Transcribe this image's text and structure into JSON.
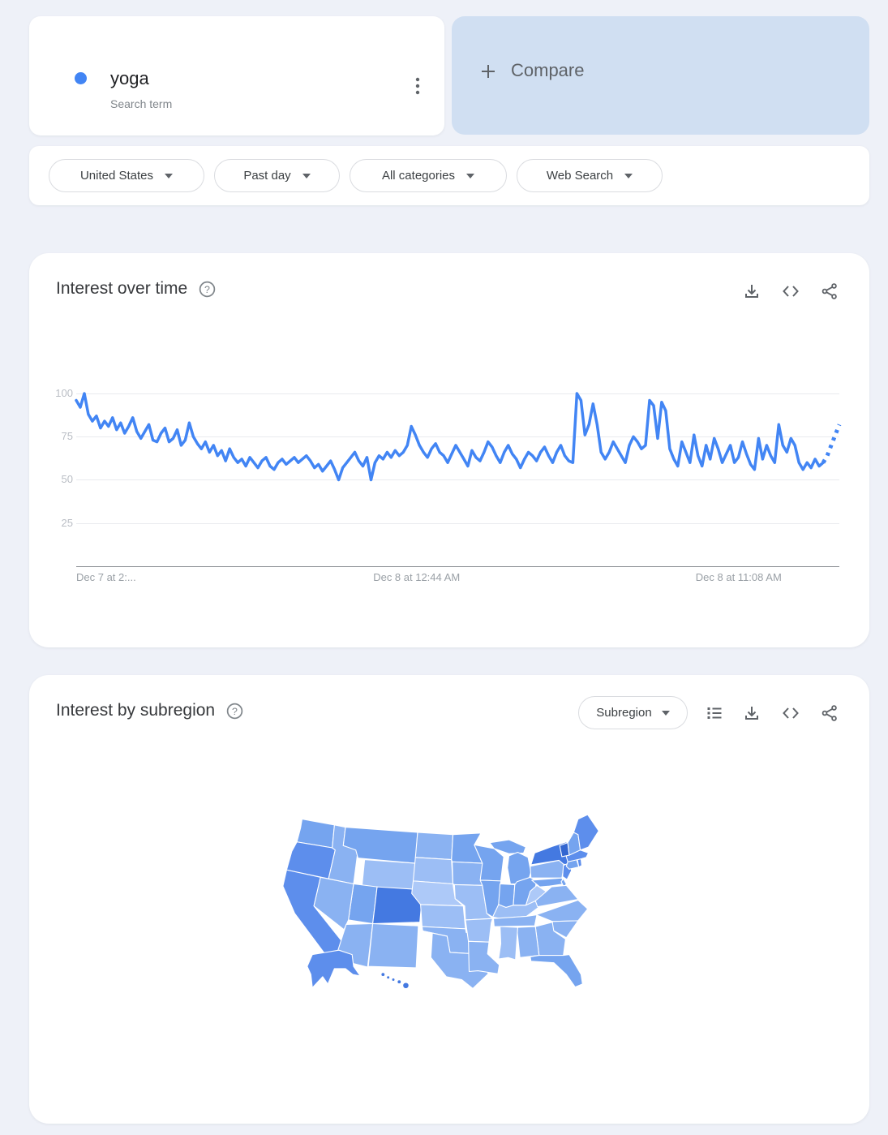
{
  "term_card": {
    "term": "yoga",
    "type_label": "Search term",
    "dot_color": "#4285f4"
  },
  "compare_card": {
    "label": "Compare"
  },
  "filters": [
    {
      "label": "United States"
    },
    {
      "label": "Past day"
    },
    {
      "label": "All categories"
    },
    {
      "label": "Web Search"
    }
  ],
  "interest_over_time": {
    "title": "Interest over time",
    "toolbar_icons": [
      "download",
      "embed",
      "share"
    ]
  },
  "interest_by_subregion": {
    "title": "Interest by subregion",
    "dropdown_label": "Subregion",
    "toolbar_icons": [
      "list-view",
      "download",
      "embed",
      "share"
    ]
  },
  "chart_data": {
    "type": "line",
    "series_name": "yoga",
    "line_color": "#4285f4",
    "grid": true,
    "ylim": [
      0,
      100
    ],
    "y_ticks": [
      25,
      50,
      75,
      100
    ],
    "x_axis_labels": [
      {
        "text": "Dec 7 at 2:...",
        "position": 0.0,
        "align": "left"
      },
      {
        "text": "Dec 8 at 12:44 AM",
        "position": 0.446,
        "align": "center"
      },
      {
        "text": "Dec 8 at 11:08 AM",
        "position": 0.868,
        "align": "center"
      }
    ],
    "values": [
      96,
      92,
      100,
      88,
      84,
      87,
      80,
      84,
      81,
      86,
      79,
      83,
      77,
      81,
      86,
      78,
      74,
      78,
      82,
      73,
      72,
      77,
      80,
      72,
      74,
      79,
      70,
      73,
      83,
      75,
      71,
      68,
      72,
      66,
      70,
      64,
      67,
      61,
      68,
      63,
      60,
      62,
      58,
      63,
      60,
      57,
      61,
      63,
      58,
      56,
      60,
      62,
      59,
      61,
      63,
      60,
      62,
      64,
      61,
      57,
      59,
      55,
      58,
      61,
      56,
      50,
      57,
      60,
      63,
      66,
      61,
      58,
      63,
      50,
      60,
      64,
      62,
      66,
      63,
      67,
      64,
      66,
      70,
      81,
      76,
      70,
      66,
      63,
      68,
      71,
      66,
      64,
      60,
      65,
      70,
      66,
      62,
      58,
      67,
      63,
      61,
      66,
      72,
      69,
      64,
      60,
      66,
      70,
      65,
      62,
      57,
      62,
      66,
      64,
      61,
      66,
      69,
      64,
      60,
      66,
      70,
      64,
      61,
      60,
      100,
      96,
      76,
      82,
      94,
      82,
      66,
      62,
      66,
      72,
      68,
      64,
      60,
      70,
      75,
      72,
      68,
      70,
      96,
      93,
      74,
      95,
      90,
      68,
      62,
      58,
      72,
      66,
      60,
      76,
      64,
      58,
      70,
      62,
      74,
      68,
      60,
      65,
      70,
      60,
      63,
      72,
      65,
      59,
      56,
      74,
      62,
      70,
      64,
      60,
      82,
      70,
      66,
      74,
      70,
      60,
      56,
      60,
      57,
      62,
      58,
      60
    ],
    "dashed_tail_values": [
      64,
      70,
      76,
      82
    ]
  },
  "map": {
    "type": "choropleth",
    "palette": {
      "1": "#adc9f8",
      "2": "#9cbef5",
      "3": "#8ab2f2",
      "4": "#75a4ef",
      "5": "#5d8eec",
      "6": "#4479e1",
      "7": "#3366d0"
    },
    "state_levels": {
      "WA": 4,
      "OR": 5,
      "CA": 5,
      "NV": 3,
      "ID": 3,
      "MT": 4,
      "WY": 2,
      "UT": 4,
      "CO": 6,
      "AZ": 3,
      "NM": 3,
      "ND": 3,
      "SD": 2,
      "NE": 1,
      "KS": 2,
      "OK": 3,
      "TX": 3,
      "MN": 4,
      "IA": 3,
      "MO": 2,
      "AR": 2,
      "LA": 3,
      "WI": 4,
      "IL": 4,
      "MI": 4,
      "IN": 4,
      "OH": 4,
      "KY": 2,
      "TN": 3,
      "MS": 2,
      "AL": 3,
      "GA": 3,
      "FL": 4,
      "SC": 3,
      "NC": 3,
      "VA": 3,
      "WV": 1,
      "MD": 4,
      "DE": 4,
      "PA": 3,
      "NJ": 5,
      "NY": 6,
      "CT": 4,
      "RI": 5,
      "MA": 5,
      "VT": 7,
      "NH": 4,
      "ME": 5,
      "AK": 5,
      "HI": 6
    }
  }
}
